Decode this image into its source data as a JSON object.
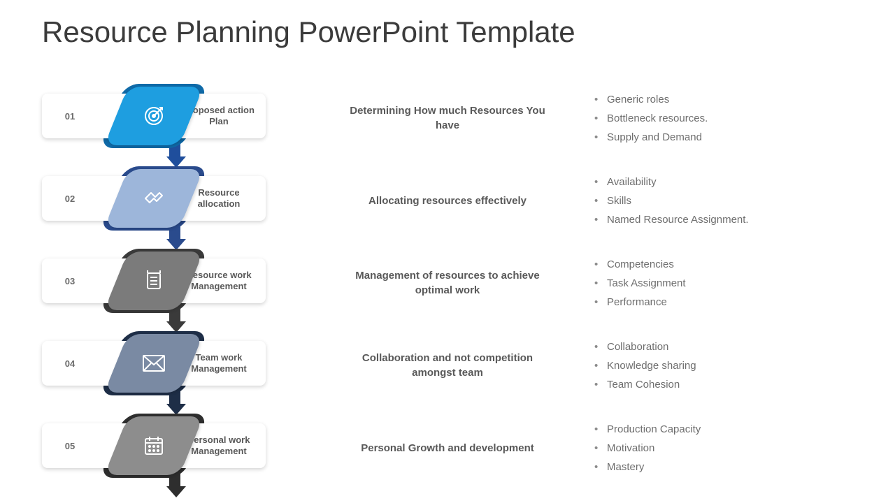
{
  "title": "Resource Planning PowerPoint Template",
  "rows": [
    {
      "num": "01",
      "label": "Proposed action Plan",
      "subtitle": "Determining How much Resources You have",
      "bullets": [
        "Generic roles",
        "Bottleneck resources.",
        "Supply and Demand"
      ],
      "ribbon_front": "#1e9ee0",
      "ribbon_back": "#0f6aa8",
      "arrow": "#1f4e9c",
      "icon": "target"
    },
    {
      "num": "02",
      "label": "Resource allocation",
      "subtitle": "Allocating resources effectively",
      "bullets": [
        "Availability",
        "Skills",
        "Named Resource Assignment."
      ],
      "ribbon_front": "#9db6da",
      "ribbon_back": "#2a4b8d",
      "arrow": "#2a4b8d",
      "icon": "handshake"
    },
    {
      "num": "03",
      "label": "Resource work Management",
      "subtitle": "Management of resources to achieve optimal work",
      "bullets": [
        "Competencies",
        "Task Assignment",
        "Performance"
      ],
      "ribbon_front": "#7b7b7b",
      "ribbon_back": "#3a3a3a",
      "arrow": "#3a3a3a",
      "icon": "scroll"
    },
    {
      "num": "04",
      "label": "Team work Management",
      "subtitle": "Collaboration and not competition amongst team",
      "bullets": [
        "Collaboration",
        "Knowledge sharing",
        "Team Cohesion"
      ],
      "ribbon_front": "#7a8aa3",
      "ribbon_back": "#1e2e47",
      "arrow": "#1e2e47",
      "icon": "mail"
    },
    {
      "num": "05",
      "label": "Personal work Management",
      "subtitle": "Personal Growth and development",
      "bullets": [
        "Production Capacity",
        "Motivation",
        "Mastery"
      ],
      "ribbon_front": "#8d8d8d",
      "ribbon_back": "#2e2e2e",
      "arrow": "#2e2e2e",
      "icon": "calendar"
    }
  ]
}
